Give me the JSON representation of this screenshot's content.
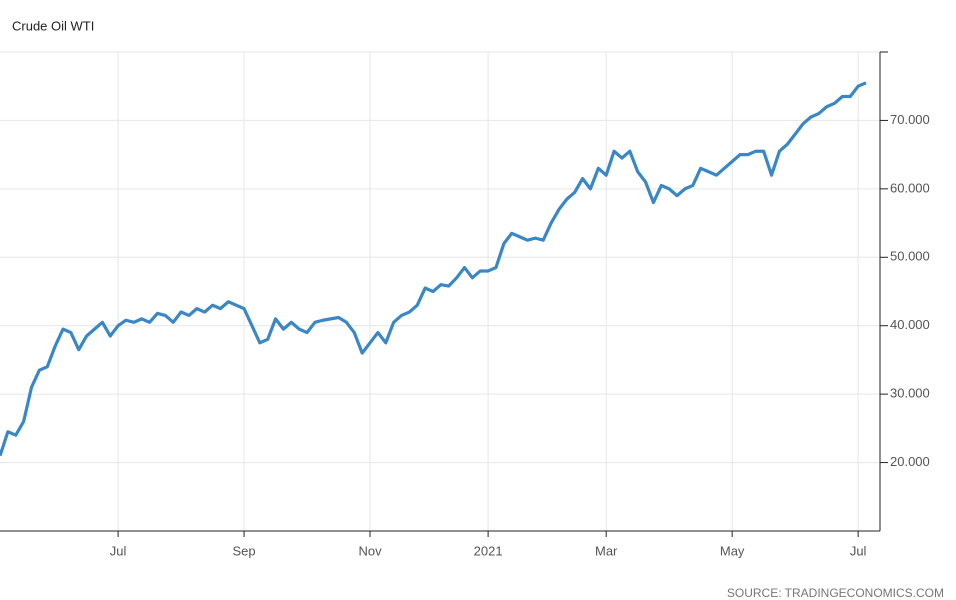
{
  "chart_data": {
    "type": "line",
    "title": "Crude Oil WTI",
    "source": "SOURCE: TRADINGECONOMICS.COM",
    "categories": [
      null,
      null,
      null,
      null,
      null,
      null,
      null,
      null,
      null,
      null,
      null,
      null,
      null,
      null,
      null,
      "Jul",
      null,
      null,
      null,
      null,
      null,
      null,
      null,
      null,
      null,
      null,
      null,
      null,
      null,
      null,
      null,
      "Sep",
      null,
      null,
      null,
      null,
      null,
      null,
      null,
      null,
      null,
      null,
      null,
      null,
      null,
      null,
      null,
      "Nov",
      null,
      null,
      null,
      null,
      null,
      null,
      null,
      null,
      null,
      null,
      null,
      null,
      null,
      null,
      "2021",
      null,
      null,
      null,
      null,
      null,
      null,
      null,
      null,
      null,
      null,
      null,
      null,
      null,
      null,
      "Mar",
      null,
      null,
      null,
      null,
      null,
      null,
      null,
      null,
      null,
      null,
      null,
      null,
      null,
      null,
      null,
      "May",
      null,
      null,
      null,
      null,
      null,
      null,
      null,
      null,
      null,
      null,
      null,
      null,
      null,
      null,
      null,
      "Jul",
      null
    ],
    "series": [
      {
        "name": "Crude Oil WTI",
        "color": "#3a87c8",
        "values": [
          21,
          24.5,
          24,
          26,
          31,
          33.5,
          34,
          37,
          39.5,
          39,
          36.5,
          38.5,
          39.5,
          40.5,
          38.5,
          40,
          40.8,
          40.5,
          41,
          40.5,
          41.8,
          41.5,
          40.5,
          42,
          41.5,
          42.5,
          42,
          43,
          42.5,
          43.5,
          43,
          42.5,
          40,
          37.5,
          38,
          41,
          39.5,
          40.5,
          39.5,
          39,
          40.5,
          40.8,
          41,
          41.2,
          40.5,
          39,
          36,
          37.5,
          39,
          37.5,
          40.5,
          41.5,
          42,
          43,
          45.5,
          45,
          46,
          45.8,
          47,
          48.5,
          47,
          48,
          48,
          48.5,
          52,
          53.5,
          53,
          52.5,
          52.8,
          52.5,
          55,
          57,
          58.5,
          59.5,
          61.5,
          60,
          63,
          62,
          65.5,
          64.5,
          65.5,
          62.5,
          61,
          58,
          60.5,
          60,
          59,
          60,
          60.5,
          63,
          62.5,
          62,
          63,
          64,
          65,
          65,
          65.5,
          65.5,
          62,
          65.5,
          66.5,
          68,
          69.5,
          70.5,
          71,
          72,
          72.5,
          73.5,
          73.5,
          75,
          75.5
        ]
      }
    ],
    "ylim": [
      10,
      80
    ],
    "yticks": [
      {
        "value": 20,
        "label": "20.000"
      },
      {
        "value": 30,
        "label": "30.000"
      },
      {
        "value": 40,
        "label": "40.000"
      },
      {
        "value": 50,
        "label": "50.000"
      },
      {
        "value": 60,
        "label": "60.000"
      },
      {
        "value": 70,
        "label": "70.000"
      }
    ],
    "grid": true
  }
}
